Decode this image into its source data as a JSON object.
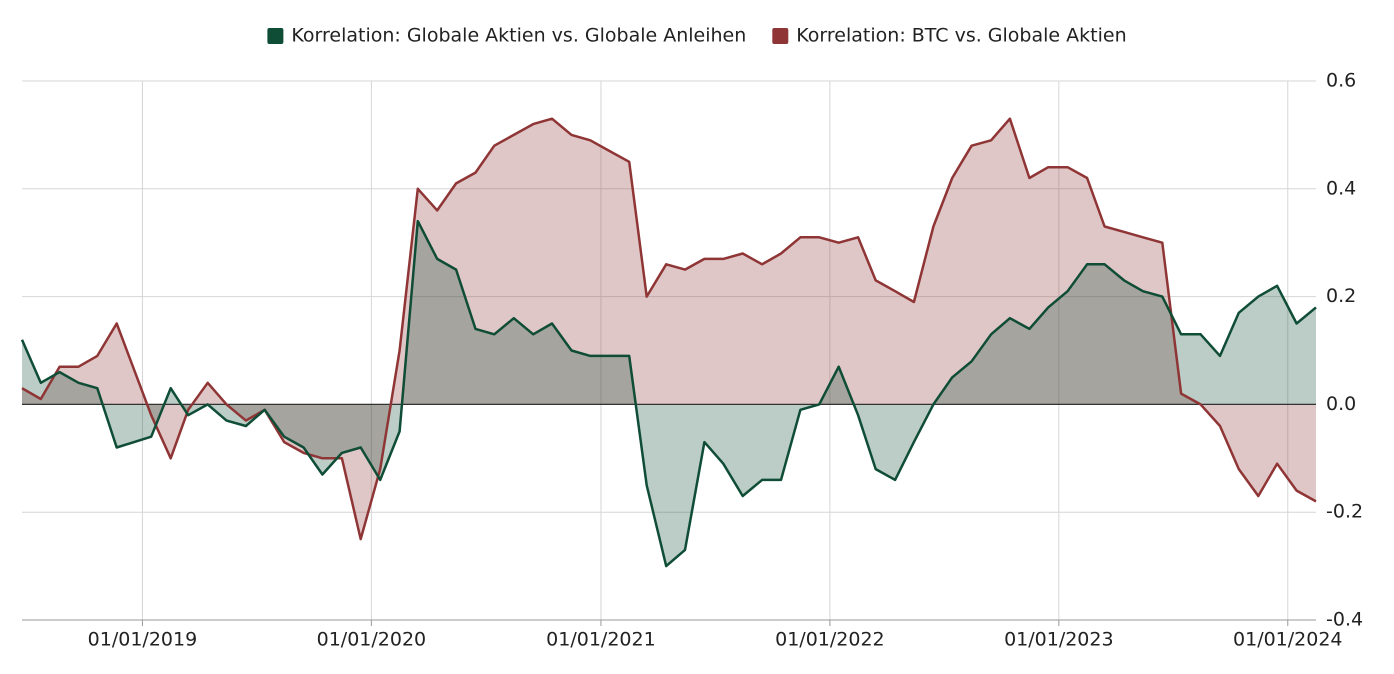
{
  "chart_data": {
    "type": "area",
    "x": [
      "2018-06-23",
      "2018-07-23",
      "2018-08-22",
      "2018-09-21",
      "2018-10-21",
      "2018-11-21",
      "2019-01-15",
      "2019-02-15",
      "2019-03-15",
      "2019-04-15",
      "2019-05-15",
      "2019-06-15",
      "2019-07-15",
      "2019-08-15",
      "2019-09-15",
      "2019-10-15",
      "2019-11-15",
      "2019-12-15",
      "2020-01-15",
      "2020-02-15",
      "2020-03-15",
      "2020-04-15",
      "2020-05-15",
      "2020-06-15",
      "2020-07-15",
      "2020-08-15",
      "2020-09-15",
      "2020-10-15",
      "2020-11-15",
      "2020-12-15",
      "2021-01-15",
      "2021-02-15",
      "2021-03-15",
      "2021-04-15",
      "2021-05-15",
      "2021-06-15",
      "2021-07-15",
      "2021-08-15",
      "2021-09-15",
      "2021-10-15",
      "2021-11-15",
      "2021-12-15",
      "2022-01-15",
      "2022-02-15",
      "2022-03-15",
      "2022-04-15",
      "2022-05-15",
      "2022-06-15",
      "2022-07-15",
      "2022-08-15",
      "2022-09-15",
      "2022-10-15",
      "2022-11-15",
      "2022-12-15",
      "2023-01-15",
      "2023-02-15",
      "2023-03-15",
      "2023-04-15",
      "2023-05-15",
      "2023-06-15",
      "2023-07-15",
      "2023-08-15",
      "2023-09-15",
      "2023-10-15",
      "2023-11-15",
      "2023-12-15",
      "2024-01-15",
      "2024-02-15"
    ],
    "series": [
      {
        "name": "Korrelation: Globale Aktien vs. Globale Anleihen",
        "color": "#0f4d36",
        "values": [
          0.12,
          0.04,
          0.06,
          0.04,
          0.03,
          -0.08,
          -0.06,
          0.03,
          -0.02,
          0.0,
          -0.03,
          -0.04,
          -0.01,
          -0.06,
          -0.08,
          -0.13,
          -0.09,
          -0.08,
          -0.14,
          -0.05,
          0.34,
          0.27,
          0.25,
          0.14,
          0.13,
          0.16,
          0.13,
          0.15,
          0.1,
          0.09,
          0.09,
          0.09,
          -0.15,
          -0.3,
          -0.27,
          -0.07,
          -0.11,
          -0.17,
          -0.14,
          -0.14,
          -0.01,
          0.0,
          0.07,
          -0.02,
          -0.12,
          -0.14,
          -0.07,
          0.0,
          0.05,
          0.08,
          0.13,
          0.16,
          0.14,
          0.18,
          0.21,
          0.26,
          0.26,
          0.23,
          0.21,
          0.2,
          0.13,
          0.13,
          0.09,
          0.17,
          0.2,
          0.22,
          0.15,
          0.18
        ]
      },
      {
        "name": "Korrelation: BTC vs. Globale Aktien",
        "color": "#8f3535",
        "values": [
          0.03,
          0.01,
          0.07,
          0.07,
          0.09,
          0.15,
          -0.02,
          -0.1,
          -0.01,
          0.04,
          0.0,
          -0.03,
          -0.01,
          -0.07,
          -0.09,
          -0.1,
          -0.1,
          -0.25,
          -0.12,
          0.1,
          0.4,
          0.36,
          0.41,
          0.43,
          0.48,
          0.5,
          0.52,
          0.53,
          0.5,
          0.49,
          0.47,
          0.45,
          0.2,
          0.26,
          0.25,
          0.27,
          0.27,
          0.28,
          0.26,
          0.28,
          0.31,
          0.31,
          0.3,
          0.31,
          0.23,
          0.21,
          0.19,
          0.33,
          0.42,
          0.48,
          0.49,
          0.53,
          0.42,
          0.44,
          0.44,
          0.42,
          0.33,
          0.32,
          0.31,
          0.3,
          0.02,
          0.0,
          -0.04,
          -0.12,
          -0.17,
          -0.11,
          -0.16,
          -0.18
        ]
      }
    ],
    "xlim": [
      "2018-06-23",
      "2024-02-15"
    ],
    "xticks": [
      {
        "value": "2019-01-01",
        "label": "01/01/2019"
      },
      {
        "value": "2020-01-01",
        "label": "01/01/2020"
      },
      {
        "value": "2021-01-01",
        "label": "01/01/2021"
      },
      {
        "value": "2022-01-01",
        "label": "01/01/2022"
      },
      {
        "value": "2023-01-01",
        "label": "01/01/2023"
      },
      {
        "value": "2024-01-01",
        "label": "01/01/2024"
      }
    ],
    "ylim": [
      -0.4,
      0.6
    ],
    "yticks": [
      0.6,
      0.4,
      0.2,
      {
        "value": 0,
        "label": "0.0"
      },
      -0.2,
      -0.4
    ],
    "grid": true,
    "legend": "top"
  }
}
